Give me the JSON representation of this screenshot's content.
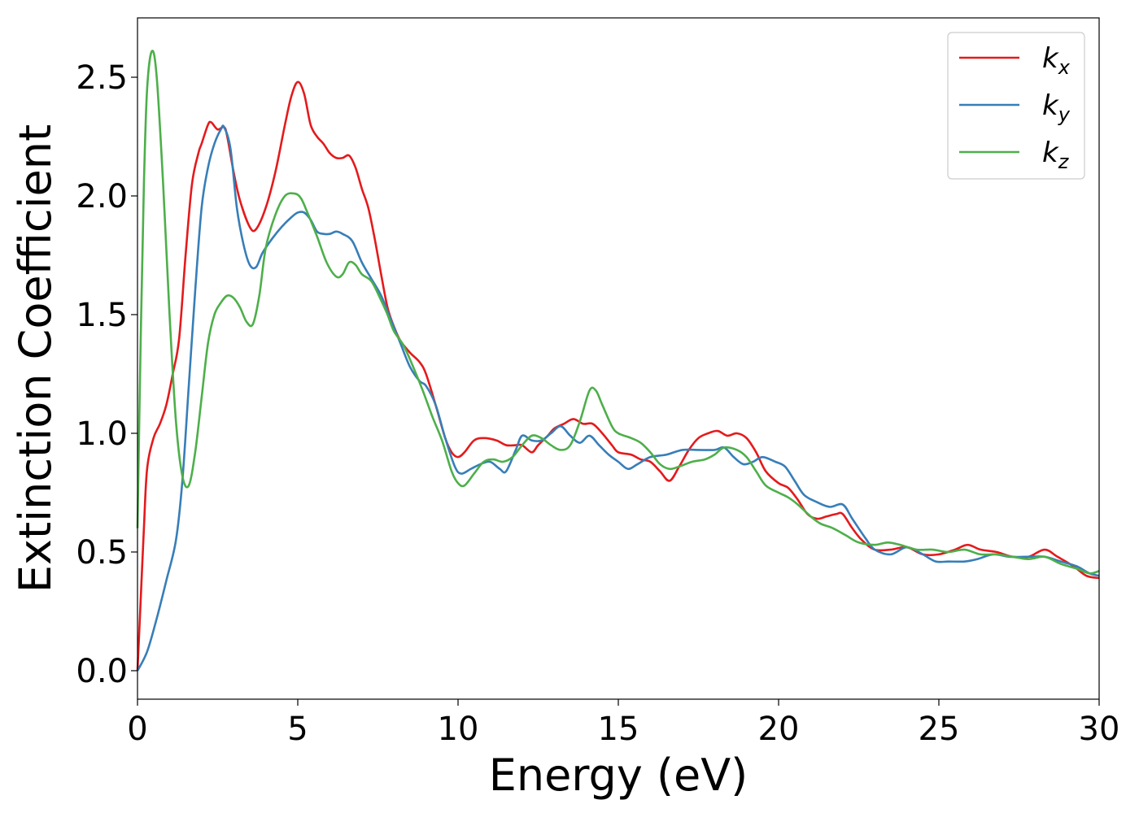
{
  "chart_data": {
    "type": "line",
    "title": "",
    "xlabel": "Energy (eV)",
    "ylabel": "Extinction Coefficient",
    "xlim": [
      0,
      30
    ],
    "ylim": [
      -0.12,
      2.75
    ],
    "xticks": [
      0,
      5,
      10,
      15,
      20,
      25,
      30
    ],
    "xtick_labels": [
      "0",
      "5",
      "10",
      "15",
      "20",
      "25",
      "30"
    ],
    "yticks": [
      0.0,
      0.5,
      1.0,
      1.5,
      2.0,
      2.5
    ],
    "ytick_labels": [
      "0.0",
      "0.5",
      "1.0",
      "1.5",
      "2.0",
      "2.5"
    ],
    "grid": false,
    "legend": "top-right",
    "series": [
      {
        "name": "k",
        "subscript": "x",
        "color": "#e41a1c",
        "points": [
          [
            0,
            0
          ],
          [
            0.1,
            0.3
          ],
          [
            0.2,
            0.6
          ],
          [
            0.3,
            0.85
          ],
          [
            0.5,
            0.98
          ],
          [
            0.7,
            1.04
          ],
          [
            0.9,
            1.12
          ],
          [
            1.1,
            1.25
          ],
          [
            1.3,
            1.4
          ],
          [
            1.5,
            1.75
          ],
          [
            1.7,
            2.05
          ],
          [
            1.9,
            2.18
          ],
          [
            2.0,
            2.22
          ],
          [
            2.2,
            2.3
          ],
          [
            2.3,
            2.31
          ],
          [
            2.5,
            2.28
          ],
          [
            2.7,
            2.29
          ],
          [
            2.8,
            2.25
          ],
          [
            3.0,
            2.1
          ],
          [
            3.2,
            1.98
          ],
          [
            3.5,
            1.87
          ],
          [
            3.7,
            1.86
          ],
          [
            4.0,
            1.95
          ],
          [
            4.3,
            2.1
          ],
          [
            4.6,
            2.3
          ],
          [
            4.8,
            2.42
          ],
          [
            5.0,
            2.48
          ],
          [
            5.2,
            2.43
          ],
          [
            5.4,
            2.3
          ],
          [
            5.6,
            2.25
          ],
          [
            5.8,
            2.22
          ],
          [
            6.0,
            2.18
          ],
          [
            6.2,
            2.16
          ],
          [
            6.4,
            2.16
          ],
          [
            6.6,
            2.17
          ],
          [
            6.8,
            2.12
          ],
          [
            7.0,
            2.03
          ],
          [
            7.2,
            1.95
          ],
          [
            7.4,
            1.82
          ],
          [
            7.6,
            1.67
          ],
          [
            7.8,
            1.53
          ],
          [
            8.0,
            1.45
          ],
          [
            8.2,
            1.39
          ],
          [
            8.5,
            1.34
          ],
          [
            8.8,
            1.3
          ],
          [
            9.0,
            1.25
          ],
          [
            9.3,
            1.12
          ],
          [
            9.6,
            0.98
          ],
          [
            9.8,
            0.92
          ],
          [
            10.0,
            0.9
          ],
          [
            10.2,
            0.92
          ],
          [
            10.5,
            0.97
          ],
          [
            10.8,
            0.98
          ],
          [
            11.2,
            0.97
          ],
          [
            11.5,
            0.95
          ],
          [
            11.8,
            0.95
          ],
          [
            12.0,
            0.95
          ],
          [
            12.3,
            0.92
          ],
          [
            12.5,
            0.95
          ],
          [
            12.8,
            0.99
          ],
          [
            13.0,
            1.02
          ],
          [
            13.3,
            1.04
          ],
          [
            13.6,
            1.06
          ],
          [
            13.9,
            1.04
          ],
          [
            14.2,
            1.04
          ],
          [
            14.5,
            1.0
          ],
          [
            14.8,
            0.95
          ],
          [
            15.0,
            0.92
          ],
          [
            15.4,
            0.91
          ],
          [
            15.7,
            0.89
          ],
          [
            16.0,
            0.88
          ],
          [
            16.3,
            0.84
          ],
          [
            16.6,
            0.8
          ],
          [
            16.9,
            0.86
          ],
          [
            17.2,
            0.93
          ],
          [
            17.5,
            0.98
          ],
          [
            17.8,
            1.0
          ],
          [
            18.1,
            1.01
          ],
          [
            18.4,
            0.99
          ],
          [
            18.7,
            1.0
          ],
          [
            19.0,
            0.98
          ],
          [
            19.3,
            0.92
          ],
          [
            19.6,
            0.84
          ],
          [
            20.0,
            0.79
          ],
          [
            20.3,
            0.77
          ],
          [
            20.6,
            0.72
          ],
          [
            20.9,
            0.66
          ],
          [
            21.2,
            0.64
          ],
          [
            21.5,
            0.65
          ],
          [
            21.8,
            0.66
          ],
          [
            22.0,
            0.66
          ],
          [
            22.3,
            0.6
          ],
          [
            22.6,
            0.55
          ],
          [
            23.0,
            0.51
          ],
          [
            23.5,
            0.51
          ],
          [
            24.0,
            0.52
          ],
          [
            24.5,
            0.49
          ],
          [
            25.0,
            0.49
          ],
          [
            25.5,
            0.51
          ],
          [
            25.9,
            0.53
          ],
          [
            26.3,
            0.51
          ],
          [
            26.8,
            0.5
          ],
          [
            27.3,
            0.48
          ],
          [
            27.8,
            0.48
          ],
          [
            28.3,
            0.51
          ],
          [
            28.7,
            0.48
          ],
          [
            29.2,
            0.44
          ],
          [
            29.6,
            0.4
          ],
          [
            30.0,
            0.39
          ]
        ]
      },
      {
        "name": "k",
        "subscript": "y",
        "color": "#377eb8",
        "points": [
          [
            0,
            0.0
          ],
          [
            0.3,
            0.08
          ],
          [
            0.6,
            0.22
          ],
          [
            0.9,
            0.38
          ],
          [
            1.2,
            0.55
          ],
          [
            1.4,
            0.8
          ],
          [
            1.6,
            1.2
          ],
          [
            1.8,
            1.6
          ],
          [
            2.0,
            1.95
          ],
          [
            2.2,
            2.12
          ],
          [
            2.4,
            2.22
          ],
          [
            2.6,
            2.28
          ],
          [
            2.7,
            2.29
          ],
          [
            2.9,
            2.2
          ],
          [
            3.1,
            1.95
          ],
          [
            3.3,
            1.8
          ],
          [
            3.5,
            1.71
          ],
          [
            3.7,
            1.7
          ],
          [
            3.9,
            1.76
          ],
          [
            4.2,
            1.82
          ],
          [
            4.5,
            1.87
          ],
          [
            4.8,
            1.91
          ],
          [
            5.0,
            1.93
          ],
          [
            5.2,
            1.93
          ],
          [
            5.4,
            1.9
          ],
          [
            5.6,
            1.85
          ],
          [
            5.8,
            1.84
          ],
          [
            6.0,
            1.84
          ],
          [
            6.2,
            1.85
          ],
          [
            6.4,
            1.84
          ],
          [
            6.7,
            1.81
          ],
          [
            7.0,
            1.72
          ],
          [
            7.3,
            1.65
          ],
          [
            7.6,
            1.58
          ],
          [
            7.9,
            1.48
          ],
          [
            8.2,
            1.38
          ],
          [
            8.5,
            1.28
          ],
          [
            8.8,
            1.22
          ],
          [
            9.0,
            1.2
          ],
          [
            9.3,
            1.12
          ],
          [
            9.6,
            0.98
          ],
          [
            9.9,
            0.86
          ],
          [
            10.1,
            0.83
          ],
          [
            10.4,
            0.85
          ],
          [
            10.7,
            0.87
          ],
          [
            11.0,
            0.88
          ],
          [
            11.3,
            0.85
          ],
          [
            11.5,
            0.84
          ],
          [
            11.8,
            0.93
          ],
          [
            12.0,
            0.99
          ],
          [
            12.3,
            0.97
          ],
          [
            12.6,
            0.97
          ],
          [
            12.9,
            1.0
          ],
          [
            13.2,
            1.03
          ],
          [
            13.5,
            0.99
          ],
          [
            13.8,
            0.96
          ],
          [
            14.1,
            0.99
          ],
          [
            14.4,
            0.95
          ],
          [
            14.7,
            0.91
          ],
          [
            15.0,
            0.88
          ],
          [
            15.3,
            0.85
          ],
          [
            15.6,
            0.87
          ],
          [
            16.0,
            0.9
          ],
          [
            16.5,
            0.91
          ],
          [
            17.0,
            0.93
          ],
          [
            17.5,
            0.93
          ],
          [
            18.0,
            0.93
          ],
          [
            18.3,
            0.94
          ],
          [
            18.6,
            0.9
          ],
          [
            18.9,
            0.87
          ],
          [
            19.2,
            0.88
          ],
          [
            19.5,
            0.9
          ],
          [
            19.9,
            0.88
          ],
          [
            20.2,
            0.86
          ],
          [
            20.5,
            0.8
          ],
          [
            20.8,
            0.74
          ],
          [
            21.2,
            0.71
          ],
          [
            21.6,
            0.69
          ],
          [
            22.0,
            0.7
          ],
          [
            22.3,
            0.64
          ],
          [
            22.7,
            0.56
          ],
          [
            23.0,
            0.51
          ],
          [
            23.5,
            0.49
          ],
          [
            24.0,
            0.52
          ],
          [
            24.5,
            0.49
          ],
          [
            24.9,
            0.46
          ],
          [
            25.3,
            0.46
          ],
          [
            25.8,
            0.46
          ],
          [
            26.2,
            0.47
          ],
          [
            26.7,
            0.49
          ],
          [
            27.2,
            0.48
          ],
          [
            27.8,
            0.48
          ],
          [
            28.3,
            0.48
          ],
          [
            28.8,
            0.46
          ],
          [
            29.3,
            0.44
          ],
          [
            29.7,
            0.41
          ],
          [
            30.0,
            0.4
          ]
        ]
      },
      {
        "name": "k",
        "subscript": "z",
        "color": "#4daf4a",
        "points": [
          [
            0,
            0.6
          ],
          [
            0.1,
            1.4
          ],
          [
            0.2,
            2.05
          ],
          [
            0.3,
            2.45
          ],
          [
            0.45,
            2.61
          ],
          [
            0.6,
            2.5
          ],
          [
            0.8,
            2.05
          ],
          [
            1.0,
            1.5
          ],
          [
            1.2,
            1.05
          ],
          [
            1.4,
            0.82
          ],
          [
            1.6,
            0.78
          ],
          [
            1.8,
            0.92
          ],
          [
            2.0,
            1.15
          ],
          [
            2.2,
            1.38
          ],
          [
            2.4,
            1.5
          ],
          [
            2.6,
            1.55
          ],
          [
            2.8,
            1.58
          ],
          [
            3.0,
            1.57
          ],
          [
            3.2,
            1.53
          ],
          [
            3.4,
            1.47
          ],
          [
            3.6,
            1.46
          ],
          [
            3.8,
            1.58
          ],
          [
            4.0,
            1.78
          ],
          [
            4.3,
            1.92
          ],
          [
            4.6,
            2.0
          ],
          [
            4.9,
            2.01
          ],
          [
            5.1,
            1.99
          ],
          [
            5.3,
            1.93
          ],
          [
            5.6,
            1.83
          ],
          [
            5.9,
            1.72
          ],
          [
            6.2,
            1.66
          ],
          [
            6.4,
            1.67
          ],
          [
            6.6,
            1.72
          ],
          [
            6.8,
            1.71
          ],
          [
            7.0,
            1.67
          ],
          [
            7.3,
            1.64
          ],
          [
            7.6,
            1.56
          ],
          [
            7.8,
            1.5
          ],
          [
            8.0,
            1.43
          ],
          [
            8.3,
            1.37
          ],
          [
            8.6,
            1.28
          ],
          [
            8.9,
            1.18
          ],
          [
            9.2,
            1.07
          ],
          [
            9.5,
            0.97
          ],
          [
            9.8,
            0.84
          ],
          [
            10.0,
            0.79
          ],
          [
            10.2,
            0.78
          ],
          [
            10.5,
            0.83
          ],
          [
            10.8,
            0.88
          ],
          [
            11.1,
            0.89
          ],
          [
            11.4,
            0.88
          ],
          [
            11.7,
            0.9
          ],
          [
            12.0,
            0.95
          ],
          [
            12.3,
            0.99
          ],
          [
            12.6,
            0.98
          ],
          [
            12.9,
            0.95
          ],
          [
            13.2,
            0.93
          ],
          [
            13.5,
            0.95
          ],
          [
            13.8,
            1.05
          ],
          [
            14.1,
            1.18
          ],
          [
            14.3,
            1.18
          ],
          [
            14.5,
            1.12
          ],
          [
            14.8,
            1.03
          ],
          [
            15.0,
            1.0
          ],
          [
            15.4,
            0.98
          ],
          [
            15.7,
            0.96
          ],
          [
            16.0,
            0.92
          ],
          [
            16.3,
            0.87
          ],
          [
            16.6,
            0.85
          ],
          [
            16.9,
            0.86
          ],
          [
            17.3,
            0.88
          ],
          [
            17.7,
            0.89
          ],
          [
            18.0,
            0.91
          ],
          [
            18.3,
            0.94
          ],
          [
            18.7,
            0.93
          ],
          [
            19.0,
            0.9
          ],
          [
            19.3,
            0.84
          ],
          [
            19.6,
            0.78
          ],
          [
            20.0,
            0.75
          ],
          [
            20.3,
            0.73
          ],
          [
            20.6,
            0.7
          ],
          [
            21.0,
            0.65
          ],
          [
            21.3,
            0.62
          ],
          [
            21.7,
            0.6
          ],
          [
            22.1,
            0.57
          ],
          [
            22.5,
            0.54
          ],
          [
            23.0,
            0.53
          ],
          [
            23.4,
            0.54
          ],
          [
            23.8,
            0.53
          ],
          [
            24.3,
            0.51
          ],
          [
            24.8,
            0.51
          ],
          [
            25.3,
            0.5
          ],
          [
            25.8,
            0.51
          ],
          [
            26.3,
            0.49
          ],
          [
            26.8,
            0.49
          ],
          [
            27.3,
            0.48
          ],
          [
            27.8,
            0.47
          ],
          [
            28.3,
            0.48
          ],
          [
            28.8,
            0.45
          ],
          [
            29.3,
            0.43
          ],
          [
            29.7,
            0.41
          ],
          [
            30.0,
            0.42
          ]
        ]
      }
    ]
  }
}
